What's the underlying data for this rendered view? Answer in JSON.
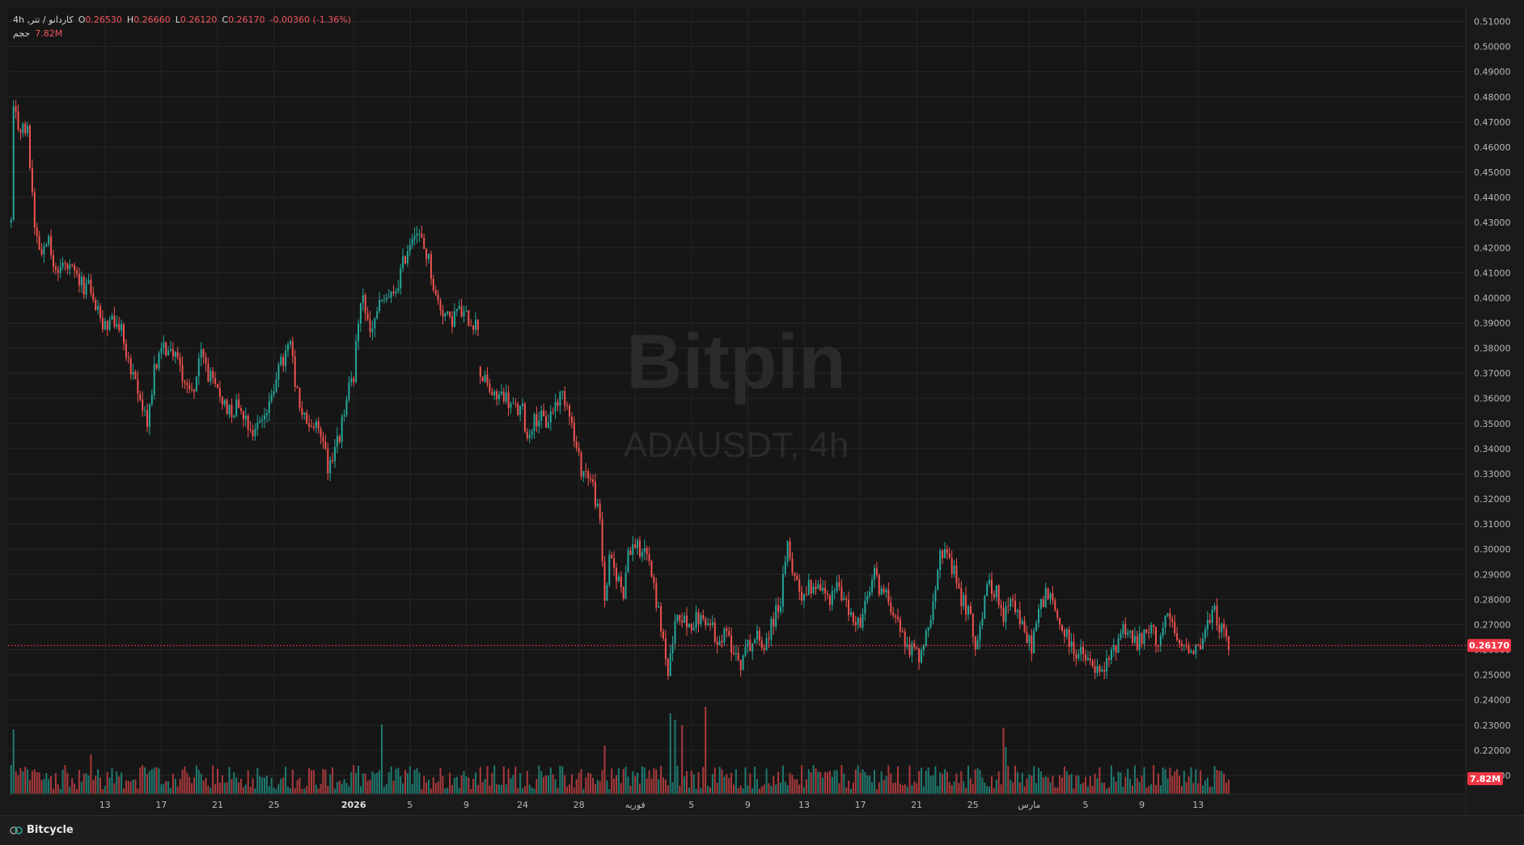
{
  "symbol_line": "کاردانو / تتر, 4h",
  "ohlc": {
    "open_label": "O",
    "open": "0.26530",
    "high_label": "H",
    "high": "0.26660",
    "low_label": "L",
    "low": "0.26120",
    "close_label": "C",
    "close": "0.26170",
    "change": "-0.00360 (-1.36%)"
  },
  "volume_line": {
    "label": "حجم",
    "value": "7.82M"
  },
  "watermark": {
    "brand": "Bitpin",
    "pair": "ADAUSDT, 4h"
  },
  "footer": {
    "brand": "Bitcycle"
  },
  "colors": {
    "up": "#26a69a",
    "down": "#ef5350",
    "background": "#1a1a1a",
    "grid": "#262626",
    "price_tag": "#f23645"
  },
  "chart_data": {
    "type": "candlestick",
    "title": "",
    "ylim": [
      0.2,
      0.515
    ],
    "y_ticks": [
      "0.21000",
      "0.22000",
      "0.23000",
      "0.24000",
      "0.25000",
      "0.26000",
      "0.27000",
      "0.28000",
      "0.29000",
      "0.30000",
      "0.31000",
      "0.32000",
      "0.33000",
      "0.34000",
      "0.35000",
      "0.36000",
      "0.37000",
      "0.38000",
      "0.39000",
      "0.40000",
      "0.41000",
      "0.42000",
      "0.43000",
      "0.44000",
      "0.45000",
      "0.46000",
      "0.47000",
      "0.48000",
      "0.49000",
      "0.50000",
      "0.51000"
    ],
    "x_ticks": [
      {
        "label": "13",
        "i": 40
      },
      {
        "label": "17",
        "i": 64
      },
      {
        "label": "21",
        "i": 88
      },
      {
        "label": "25",
        "i": 112
      },
      {
        "label": "2026",
        "i": 146,
        "bold": true
      },
      {
        "label": "5",
        "i": 170
      },
      {
        "label": "9",
        "i": 194
      },
      {
        "label": "24",
        "i": 218
      },
      {
        "label": "28",
        "i": 242
      },
      {
        "label": "فوریه",
        "i": 266
      },
      {
        "label": "5",
        "i": 290
      },
      {
        "label": "9",
        "i": 314
      },
      {
        "label": "13",
        "i": 338
      },
      {
        "label": "17",
        "i": 362
      },
      {
        "label": "21",
        "i": 386
      },
      {
        "label": "25",
        "i": 410
      },
      {
        "label": "مارس",
        "i": 434
      },
      {
        "label": "5",
        "i": 458
      },
      {
        "label": "9",
        "i": 482
      },
      {
        "label": "13",
        "i": 506
      }
    ],
    "last_price": "0.26170",
    "last_volume": "7.82M",
    "gap_after_index": 199,
    "close_path": [
      [
        0,
        0.43
      ],
      [
        1,
        0.475
      ],
      [
        3,
        0.468
      ],
      [
        7,
        0.466
      ],
      [
        10,
        0.43
      ],
      [
        13,
        0.418
      ],
      [
        16,
        0.428
      ],
      [
        18,
        0.41
      ],
      [
        22,
        0.413
      ],
      [
        26,
        0.41
      ],
      [
        30,
        0.405
      ],
      [
        34,
        0.404
      ],
      [
        38,
        0.39
      ],
      [
        43,
        0.39
      ],
      [
        47,
        0.388
      ],
      [
        51,
        0.37
      ],
      [
        55,
        0.36
      ],
      [
        58,
        0.35
      ],
      [
        61,
        0.372
      ],
      [
        65,
        0.38
      ],
      [
        70,
        0.378
      ],
      [
        73,
        0.37
      ],
      [
        77,
        0.362
      ],
      [
        79,
        0.37
      ],
      [
        81,
        0.378
      ],
      [
        84,
        0.37
      ],
      [
        86,
        0.365
      ],
      [
        90,
        0.36
      ],
      [
        93,
        0.355
      ],
      [
        97,
        0.358
      ],
      [
        100,
        0.353
      ],
      [
        103,
        0.346
      ],
      [
        106,
        0.352
      ],
      [
        110,
        0.356
      ],
      [
        113,
        0.37
      ],
      [
        116,
        0.375
      ],
      [
        119,
        0.382
      ],
      [
        121,
        0.365
      ],
      [
        124,
        0.353
      ],
      [
        127,
        0.35
      ],
      [
        130,
        0.348
      ],
      [
        133,
        0.345
      ],
      [
        135,
        0.333
      ],
      [
        137,
        0.337
      ],
      [
        140,
        0.345
      ],
      [
        143,
        0.36
      ],
      [
        146,
        0.37
      ],
      [
        148,
        0.39
      ],
      [
        150,
        0.4
      ],
      [
        153,
        0.385
      ],
      [
        156,
        0.395
      ],
      [
        160,
        0.4
      ],
      [
        163,
        0.4
      ],
      [
        166,
        0.41
      ],
      [
        169,
        0.42
      ],
      [
        172,
        0.428
      ],
      [
        175,
        0.422
      ],
      [
        178,
        0.415
      ],
      [
        181,
        0.4
      ],
      [
        184,
        0.395
      ],
      [
        187,
        0.39
      ],
      [
        190,
        0.395
      ],
      [
        193,
        0.393
      ],
      [
        196,
        0.391
      ],
      [
        199,
        0.389
      ],
      [
        200,
        0.37
      ],
      [
        203,
        0.365
      ],
      [
        206,
        0.36
      ],
      [
        210,
        0.362
      ],
      [
        213,
        0.357
      ],
      [
        216,
        0.355
      ],
      [
        218,
        0.355
      ],
      [
        220,
        0.344
      ],
      [
        222,
        0.35
      ],
      [
        225,
        0.353
      ],
      [
        228,
        0.35
      ],
      [
        232,
        0.358
      ],
      [
        235,
        0.362
      ],
      [
        238,
        0.356
      ],
      [
        240,
        0.343
      ],
      [
        243,
        0.332
      ],
      [
        246,
        0.33
      ],
      [
        248,
        0.325
      ],
      [
        251,
        0.31
      ],
      [
        253,
        0.28
      ],
      [
        255,
        0.295
      ],
      [
        258,
        0.29
      ],
      [
        261,
        0.283
      ],
      [
        263,
        0.3
      ],
      [
        266,
        0.302
      ],
      [
        268,
        0.3
      ],
      [
        270,
        0.302
      ],
      [
        272,
        0.295
      ],
      [
        275,
        0.28
      ],
      [
        278,
        0.264
      ],
      [
        280,
        0.25
      ],
      [
        282,
        0.262
      ],
      [
        284,
        0.275
      ],
      [
        286,
        0.272
      ],
      [
        289,
        0.27
      ],
      [
        292,
        0.272
      ],
      [
        296,
        0.272
      ],
      [
        299,
        0.268
      ],
      [
        302,
        0.264
      ],
      [
        305,
        0.266
      ],
      [
        308,
        0.26
      ],
      [
        311,
        0.255
      ],
      [
        314,
        0.262
      ],
      [
        318,
        0.265
      ],
      [
        321,
        0.262
      ],
      [
        324,
        0.27
      ],
      [
        328,
        0.28
      ],
      [
        331,
        0.3
      ],
      [
        334,
        0.29
      ],
      [
        337,
        0.282
      ],
      [
        340,
        0.285
      ],
      [
        344,
        0.287
      ],
      [
        348,
        0.28
      ],
      [
        352,
        0.285
      ],
      [
        355,
        0.28
      ],
      [
        358,
        0.273
      ],
      [
        362,
        0.27
      ],
      [
        365,
        0.28
      ],
      [
        368,
        0.29
      ],
      [
        371,
        0.283
      ],
      [
        374,
        0.28
      ],
      [
        377,
        0.275
      ],
      [
        380,
        0.265
      ],
      [
        384,
        0.26
      ],
      [
        387,
        0.258
      ],
      [
        390,
        0.265
      ],
      [
        393,
        0.28
      ],
      [
        396,
        0.302
      ],
      [
        399,
        0.295
      ],
      [
        402,
        0.29
      ],
      [
        405,
        0.28
      ],
      [
        408,
        0.276
      ],
      [
        411,
        0.262
      ],
      [
        414,
        0.275
      ],
      [
        417,
        0.287
      ],
      [
        420,
        0.283
      ],
      [
        423,
        0.27
      ],
      [
        426,
        0.283
      ],
      [
        429,
        0.275
      ],
      [
        432,
        0.265
      ],
      [
        435,
        0.262
      ],
      [
        438,
        0.275
      ],
      [
        441,
        0.283
      ],
      [
        444,
        0.278
      ],
      [
        447,
        0.27
      ],
      [
        450,
        0.265
      ],
      [
        453,
        0.26
      ],
      [
        456,
        0.258
      ],
      [
        459,
        0.255
      ],
      [
        462,
        0.252
      ],
      [
        465,
        0.25
      ],
      [
        468,
        0.256
      ],
      [
        471,
        0.262
      ],
      [
        474,
        0.27
      ],
      [
        477,
        0.266
      ],
      [
        480,
        0.262
      ],
      [
        483,
        0.265
      ],
      [
        486,
        0.268
      ],
      [
        489,
        0.263
      ],
      [
        492,
        0.272
      ],
      [
        495,
        0.27
      ],
      [
        498,
        0.26
      ],
      [
        501,
        0.262
      ],
      [
        504,
        0.261
      ],
      [
        507,
        0.262
      ],
      [
        510,
        0.27
      ],
      [
        513,
        0.275
      ],
      [
        516,
        0.268
      ],
      [
        519,
        0.2617
      ]
    ],
    "volume_spikes": [
      {
        "i": 253,
        "v": 60
      },
      {
        "i": 265,
        "v": 28
      },
      {
        "i": 281,
        "v": 100
      },
      {
        "i": 283,
        "v": 92
      },
      {
        "i": 286,
        "v": 85
      },
      {
        "i": 296,
        "v": 108
      },
      {
        "i": 158,
        "v": 86
      },
      {
        "i": 423,
        "v": 82
      },
      {
        "i": 424,
        "v": 58
      },
      {
        "i": 1,
        "v": 80
      },
      {
        "i": 34,
        "v": 49
      }
    ]
  }
}
